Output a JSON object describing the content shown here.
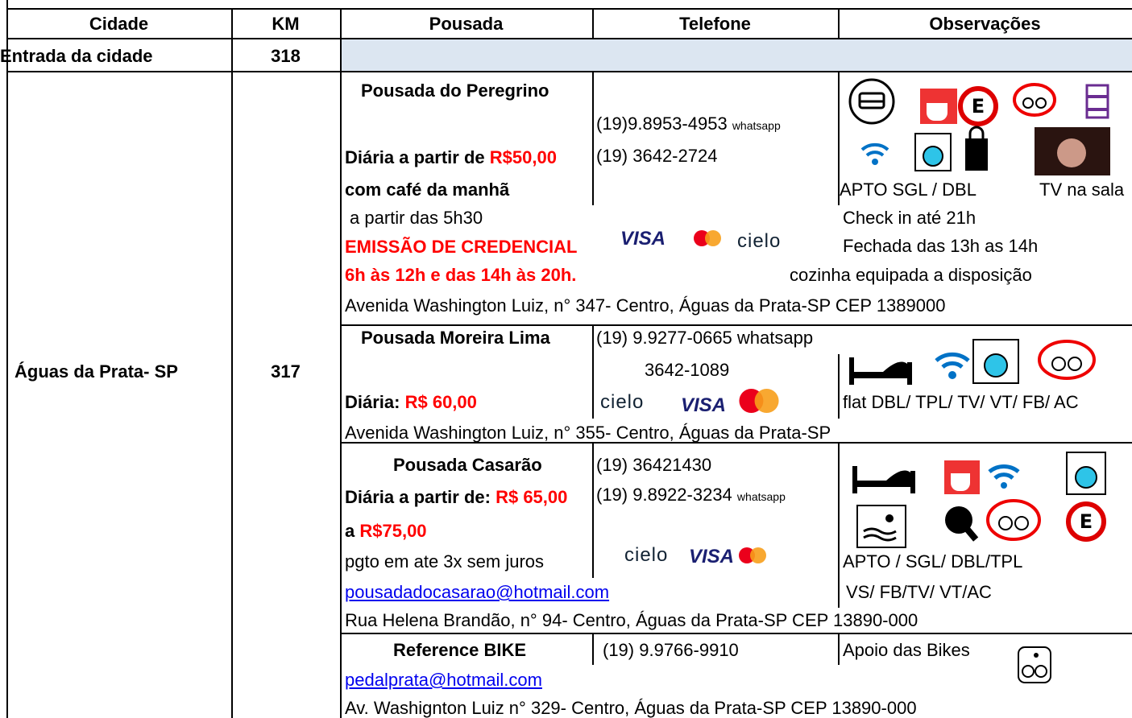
{
  "header": {
    "columns": [
      "Cidade",
      "KM",
      "Pousada",
      "Telefone",
      "Observações"
    ]
  },
  "entrance": {
    "city": "Entrada da cidade",
    "km": "318"
  },
  "city": {
    "name": "Águas da Prata- SP",
    "km": "317"
  },
  "payment": {
    "visa": "VISA",
    "cielo": "cielo"
  },
  "lodgings": [
    {
      "name": "Pousada do Peregrino",
      "phone1": "(19)9.8953-4953",
      "phone1_note": "whatsapp",
      "phone2": "(19) 3642-2724",
      "price_label": "Diária a partir de ",
      "price": "R$50,00",
      "breakfast": "com café da manhã",
      "breakfast_time": "a partir das 5h30",
      "credential": "EMISSÃO DE CREDENCIAL",
      "credential_hours": "6h às 12h e das 14h às 20h.",
      "rooms": "APTO  SGL / DBL",
      "tv": "TV na sala",
      "checkin": "Check in até 21h",
      "closed": "Fechada das 13h as 14h",
      "kitchen": "cozinha equipada a disposição",
      "address": "Avenida Washington Luiz, n° 347- Centro, Águas da Prata-SP CEP 1389000"
    },
    {
      "name": "Pousada Moreira Lima",
      "phone1": "(19) 9.9277-0665 whatsapp",
      "phone2": "3642-1089",
      "price_label": "Diária: ",
      "price": "R$ 60,00",
      "rooms": "flat DBL/ TPL/ TV/ VT/ FB/ AC",
      "address": "Avenida Washington Luiz, n° 355- Centro, Águas da Prata-SP"
    },
    {
      "name": "Pousada Casarão",
      "phone1": "(19) 36421430",
      "phone2": "(19) 9.8922-3234",
      "phone2_note": "whatsapp",
      "price_label": "Diária a partir de: ",
      "price": "R$ 65,00",
      "price2_label": "a ",
      "price2": "R$75,00",
      "installments": "pgto em ate 3x sem juros",
      "email": "pousadadocasarao@hotmail.com ",
      "rooms": "APTO / SGL/ DBL/TPL",
      "rooms2": "VS/ FB/TV/ VT/AC",
      "address": "Rua Helena Brandão, n° 94- Centro, Águas da Prata-SP CEP 13890-000"
    },
    {
      "name": "Reference BIKE",
      "phone1": "(19) 9.9766-9910",
      "support": "Apoio das Bikes",
      "email": "pedalprata@hotmail.com",
      "address": "Av. Washignton Luiz n° 329- Centro, Águas da Prata-SP CEP 13890-000"
    }
  ]
}
